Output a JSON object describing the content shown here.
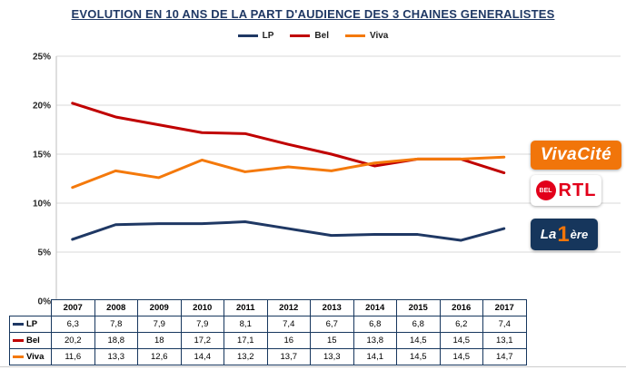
{
  "title": "EVOLUTION EN 10 ANS DE LA PART D'AUDIENCE DES 3 CHAINES GENERALISTES",
  "chart_data": {
    "type": "line",
    "title": "EVOLUTION EN 10 ANS DE LA PART D'AUDIENCE DES 3 CHAINES GENERALISTES",
    "categories": [
      "2007",
      "2008",
      "2009",
      "2010",
      "2011",
      "2012",
      "2013",
      "2014",
      "2015",
      "2016",
      "2017"
    ],
    "series": [
      {
        "name": "LP",
        "color": "#1f3864",
        "values": [
          6.3,
          7.8,
          7.9,
          7.9,
          8.1,
          7.4,
          6.7,
          6.8,
          6.8,
          6.2,
          7.4
        ]
      },
      {
        "name": "Bel",
        "color": "#c00000",
        "values": [
          20.2,
          18.8,
          18,
          17.2,
          17.1,
          16,
          15,
          13.8,
          14.5,
          14.5,
          13.1
        ]
      },
      {
        "name": "Viva",
        "color": "#f4790b",
        "values": [
          11.6,
          13.3,
          12.6,
          14.4,
          13.2,
          13.7,
          13.3,
          14.1,
          14.5,
          14.5,
          14.7
        ]
      }
    ],
    "ylim": [
      0,
      25
    ],
    "yticks": [
      {
        "value": 0,
        "label": "0%"
      },
      {
        "value": 5,
        "label": "5%"
      },
      {
        "value": 10,
        "label": "10%"
      },
      {
        "value": 15,
        "label": "15%"
      },
      {
        "value": 20,
        "label": "20%"
      },
      {
        "value": 25,
        "label": "25%"
      }
    ],
    "grid": true,
    "legend_position": "top"
  },
  "table": {
    "header": [
      "",
      "2007",
      "2008",
      "2009",
      "2010",
      "2011",
      "2012",
      "2013",
      "2014",
      "2015",
      "2016",
      "2017"
    ],
    "rows": [
      {
        "label": "LP",
        "values": [
          "6,3",
          "7,8",
          "7,9",
          "7,9",
          "8,1",
          "7,4",
          "6,7",
          "6,8",
          "6,8",
          "6,2",
          "7,4"
        ]
      },
      {
        "label": "Bel",
        "values": [
          "20,2",
          "18,8",
          "18",
          "17,2",
          "17,1",
          "16",
          "15",
          "13,8",
          "14,5",
          "14,5",
          "13,1"
        ]
      },
      {
        "label": "Viva",
        "values": [
          "11,6",
          "13,3",
          "12,6",
          "14,4",
          "13,2",
          "13,7",
          "13,3",
          "14,1",
          "14,5",
          "14,5",
          "14,7"
        ]
      }
    ]
  },
  "logos": {
    "vivacite": {
      "text": "VivaCité",
      "bg": "#f1750a"
    },
    "belrtl": {
      "badge": "BEL",
      "text": "RTL",
      "color": "#e2001a"
    },
    "la1ere": {
      "prefix": "La",
      "one": "1",
      "suffix": "ère",
      "bg": "#16365c",
      "accent": "#f1750a"
    }
  }
}
